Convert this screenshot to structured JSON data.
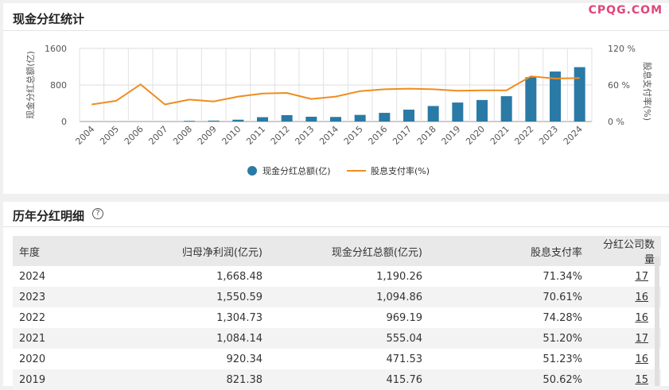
{
  "watermark": "CPQG.COM",
  "chart_section": {
    "title": "现金分红统计"
  },
  "detail_section": {
    "title": "历年分红明细",
    "help_icon": "?"
  },
  "chart_data": {
    "type": "bar",
    "categories": [
      "2004",
      "2005",
      "2006",
      "2007",
      "2008",
      "2009",
      "2010",
      "2011",
      "2012",
      "2013",
      "2014",
      "2015",
      "2016",
      "2017",
      "2018",
      "2019",
      "2020",
      "2021",
      "2022",
      "2023",
      "2024"
    ],
    "series": [
      {
        "name": "现金分红总额(亿)",
        "type": "bar",
        "axis": "left",
        "color": "#2a7aa6",
        "values": [
          0,
          0,
          0,
          0,
          15,
          20,
          40,
          95,
          140,
          105,
          100,
          145,
          190,
          260,
          340,
          415.76,
          471.53,
          555.04,
          969.19,
          1094.86,
          1190.26
        ]
      },
      {
        "name": "股息支付率(%)",
        "type": "line",
        "axis": "right",
        "color": "#f08c1e",
        "values": [
          28,
          34,
          61,
          28,
          36,
          33,
          41,
          46,
          47,
          37,
          41,
          50,
          53,
          54,
          53,
          50.62,
          51.23,
          51.2,
          74.28,
          70.61,
          71.34
        ]
      }
    ],
    "ylabel": "现金分红总额(亿)",
    "y2label": "股息支付率(%)",
    "ylim": [
      0,
      1600
    ],
    "y2lim": [
      0,
      120
    ],
    "yticks": [
      "0",
      "800",
      "1600"
    ],
    "y2ticks": [
      "0 %",
      "60 %",
      "120 %"
    ],
    "grid": true,
    "legend_position": "bottom-center"
  },
  "table": {
    "headers": [
      "年度",
      "归母净利润(亿元)",
      "现金分红总额(亿元)",
      "股息支付率",
      "分红公司数量"
    ],
    "rows": [
      [
        "2024",
        "1,668.48",
        "1,190.26",
        "71.34%",
        "17"
      ],
      [
        "2023",
        "1,550.59",
        "1,094.86",
        "70.61%",
        "16"
      ],
      [
        "2022",
        "1,304.73",
        "969.19",
        "74.28%",
        "16"
      ],
      [
        "2021",
        "1,084.14",
        "555.04",
        "51.20%",
        "17"
      ],
      [
        "2020",
        "920.34",
        "471.53",
        "51.23%",
        "16"
      ],
      [
        "2019",
        "821.38",
        "415.76",
        "50.62%",
        "15"
      ]
    ]
  }
}
